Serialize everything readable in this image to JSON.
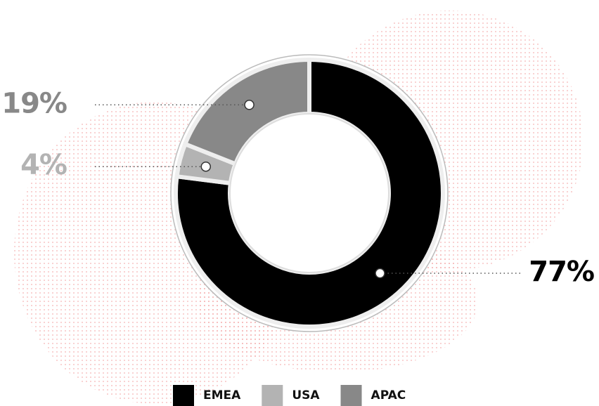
{
  "chart_data": {
    "type": "donut",
    "categories": [
      "EMEA",
      "USA",
      "APAC"
    ],
    "values": [
      77,
      4,
      19
    ],
    "value_labels": [
      "77%",
      "4%",
      "19%"
    ],
    "colors": [
      "#000000",
      "#b3b3b3",
      "#888888"
    ],
    "legend": "bottom"
  }
}
